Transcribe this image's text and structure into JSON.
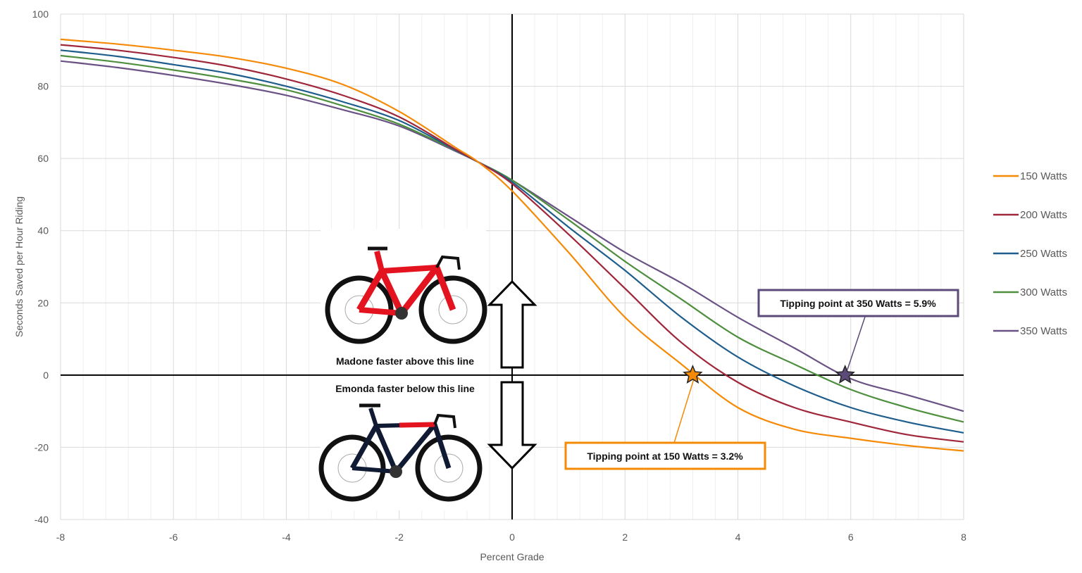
{
  "chart_data": {
    "type": "line",
    "title": "",
    "xlabel": "Percent Grade",
    "ylabel": "Seconds Saved per Hour Riding",
    "xlim": [
      -8,
      8
    ],
    "ylim": [
      -40,
      100
    ],
    "xticks": [
      -8,
      -6,
      -4,
      -2,
      0,
      2,
      4,
      6,
      8
    ],
    "yticks": [
      -40,
      -20,
      0,
      20,
      40,
      60,
      80,
      100
    ],
    "grid": true,
    "legend_position": "right",
    "x": [
      -8,
      -7,
      -6,
      -5,
      -4,
      -3,
      -2,
      -1,
      -0.6,
      0,
      1,
      2,
      3,
      4,
      5,
      6,
      7,
      8
    ],
    "series": [
      {
        "name": "150 Watts",
        "color": "#F58A07",
        "values": [
          93,
          91.7,
          90,
          88,
          85,
          80.5,
          73,
          63,
          59,
          51,
          34,
          16,
          3,
          -9,
          -15,
          -17.5,
          -19.5,
          -21
        ]
      },
      {
        "name": "200 Watts",
        "color": "#A0263A",
        "values": [
          91.5,
          90,
          88,
          85.5,
          82,
          77.5,
          71.5,
          62.5,
          59,
          53,
          39,
          24,
          9,
          -2,
          -9,
          -13,
          -16.5,
          -18.5
        ]
      },
      {
        "name": "250 Watts",
        "color": "#1F5E8C",
        "values": [
          90,
          88.3,
          86,
          83.5,
          80,
          75.7,
          70.5,
          62.3,
          59,
          53.5,
          41,
          29,
          16,
          5,
          -3,
          -9,
          -13,
          -16
        ]
      },
      {
        "name": "300 Watts",
        "color": "#4E8F3E",
        "values": [
          88.5,
          86.7,
          84.5,
          82,
          79,
          74.6,
          69.5,
          62.2,
          59,
          54,
          43,
          31.5,
          21,
          10.5,
          3,
          -4,
          -9,
          -13
        ]
      },
      {
        "name": "350 Watts",
        "color": "#6A5285",
        "values": [
          87,
          85.2,
          83,
          80.5,
          77.5,
          73.5,
          69,
          62,
          59,
          54,
          44,
          34,
          25.5,
          16,
          7.5,
          -1,
          -5.5,
          -10
        ]
      }
    ],
    "annotations": [
      {
        "text": "Tipping point at 350 Watts = 5.9%",
        "x": 5.9,
        "y": 0,
        "color": "#5B4A7A",
        "marker": "star"
      },
      {
        "text": "Tipping point at 150 Watts = 3.2%",
        "x": 3.2,
        "y": 0,
        "color": "#F58A07",
        "marker": "star"
      },
      {
        "text": "Madone faster above this line"
      },
      {
        "text": "Emonda faster below this line"
      }
    ],
    "reference_lines": {
      "horizontal": 0,
      "vertical": 0
    }
  }
}
